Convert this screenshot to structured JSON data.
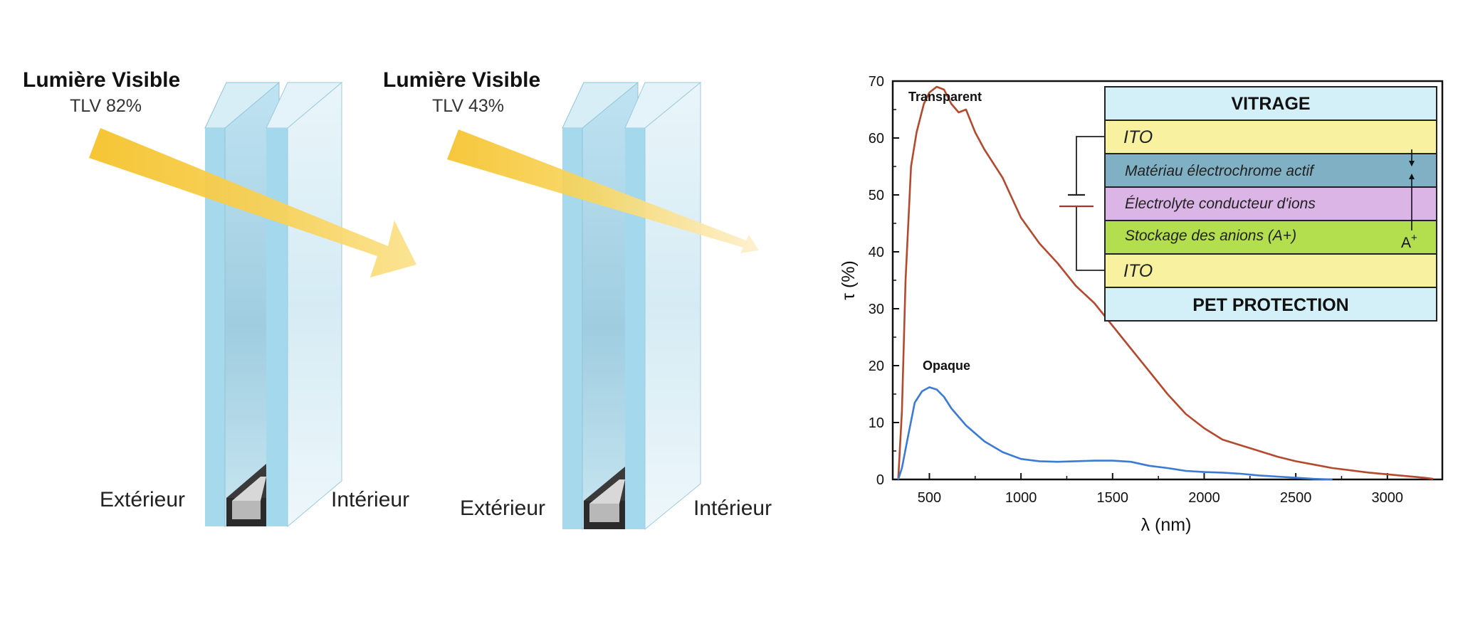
{
  "panels": [
    {
      "title": "Lumière Visible",
      "tlv": "TLV 82%",
      "exterior": "Extérieur",
      "interior": "Intérieur"
    },
    {
      "title": "Lumière Visible",
      "tlv": "TLV 43%",
      "exterior": "Extérieur",
      "interior": "Intérieur"
    }
  ],
  "colors": {
    "arrow": "#f5c22a",
    "glass_edge": "#9fd6ec",
    "transparent_curve": "#b5492d",
    "opaque_curve": "#3a7bd5"
  },
  "stack": {
    "layers": [
      {
        "label": "VITRAGE",
        "color": "#d3eff7"
      },
      {
        "label": "ITO",
        "color": "#f8f1a0"
      },
      {
        "label": "Matériau électrochrome actif",
        "color": "#7fb0c4"
      },
      {
        "label": "Électrolyte conducteur d'ions",
        "color": "#dab5e6"
      },
      {
        "label": "Stockage des anions (A+)",
        "color": "#b3de4e"
      },
      {
        "label": "ITO",
        "color": "#f8f1a0"
      },
      {
        "label": "PET PROTECTION",
        "color": "#d3eff7"
      }
    ],
    "ion_label": "A",
    "ion_charge": "+"
  },
  "chart_data": {
    "type": "line",
    "xlabel": "λ (nm)",
    "ylabel": "τ (%)",
    "xlim": [
      300,
      3300
    ],
    "ylim": [
      0,
      70
    ],
    "xticks": [
      500,
      1000,
      1500,
      2000,
      2500,
      3000
    ],
    "yticks": [
      0,
      10,
      20,
      30,
      40,
      50,
      60,
      70
    ],
    "series": [
      {
        "name": "Transparent",
        "x": [
          330,
          350,
          370,
          400,
          430,
          470,
          500,
          540,
          580,
          620,
          660,
          700,
          750,
          800,
          900,
          1000,
          1100,
          1200,
          1300,
          1400,
          1500,
          1600,
          1700,
          1800,
          1900,
          2000,
          2100,
          2200,
          2300,
          2400,
          2500,
          2600,
          2700,
          2800,
          2900,
          3000,
          3100,
          3200,
          3250
        ],
        "y": [
          0,
          12,
          35,
          55,
          61,
          66,
          68,
          69,
          68.5,
          66,
          64.5,
          65,
          61,
          58,
          53,
          46,
          41.5,
          38,
          34,
          31,
          27,
          23,
          19,
          15,
          11.5,
          9,
          7,
          6,
          5,
          4,
          3.2,
          2.6,
          2,
          1.6,
          1.2,
          0.9,
          0.6,
          0.3,
          0.1
        ]
      },
      {
        "name": "Opaque",
        "x": [
          330,
          350,
          380,
          420,
          460,
          500,
          540,
          580,
          620,
          660,
          700,
          800,
          900,
          1000,
          1100,
          1200,
          1300,
          1400,
          1500,
          1600,
          1700,
          1800,
          1900,
          2000,
          2100,
          2200,
          2300,
          2400,
          2500,
          2600,
          2700
        ],
        "y": [
          0,
          2,
          7,
          13.5,
          15.5,
          16.2,
          15.8,
          14.5,
          12.5,
          11,
          9.5,
          6.7,
          4.8,
          3.6,
          3.2,
          3.1,
          3.2,
          3.3,
          3.3,
          3.1,
          2.4,
          2,
          1.5,
          1.3,
          1.2,
          1,
          0.7,
          0.5,
          0.3,
          0.1,
          0
        ]
      }
    ]
  }
}
